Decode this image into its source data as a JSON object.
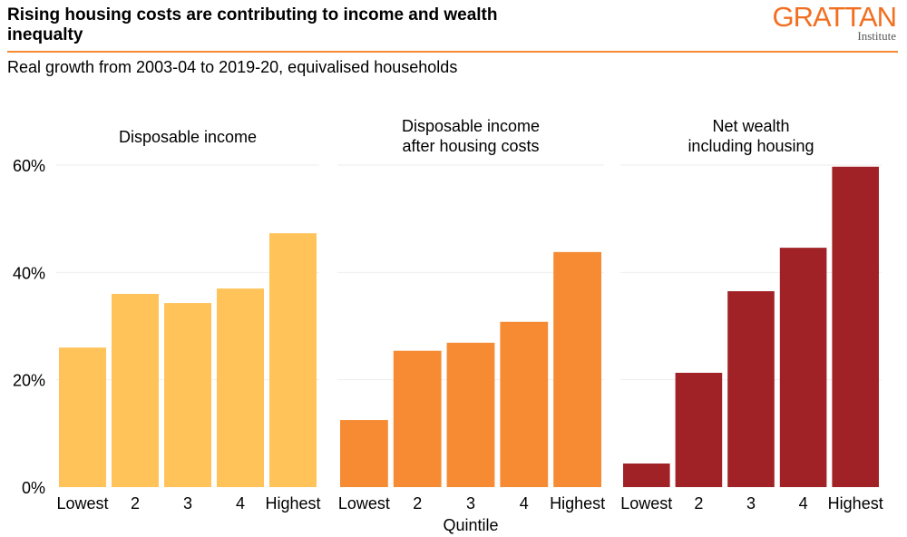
{
  "header": {
    "title": "Rising housing costs are contributing to income and wealth inequalty",
    "subtitle": "Real growth from 2003-04 to 2019-20, equivalised households",
    "logo_text": "GRATTAN",
    "logo_sub": "Institute"
  },
  "colors": {
    "accent": "#F68B33",
    "logo": "#F26F21"
  },
  "chart_data": {
    "type": "bar",
    "xlabel": "Quintile",
    "ylabel": "",
    "ylim": [
      0,
      60
    ],
    "yticks": [
      0,
      20,
      40,
      60
    ],
    "ytick_labels": [
      "0%",
      "20%",
      "40%",
      "60%"
    ],
    "grid": true,
    "categories": [
      "Lowest",
      "2",
      "3",
      "4",
      "Highest"
    ],
    "panels": [
      {
        "title": [
          "Disposable income"
        ],
        "color": "#FFC35A",
        "values": [
          26.0,
          36.0,
          34.3,
          37.0,
          47.3
        ]
      },
      {
        "title": [
          "Disposable income",
          "after housing costs"
        ],
        "color": "#F68B33",
        "values": [
          12.5,
          25.4,
          26.9,
          30.8,
          43.8
        ]
      },
      {
        "title": [
          "Net wealth",
          "including housing"
        ],
        "color": "#A02226",
        "values": [
          4.4,
          21.3,
          36.5,
          44.6,
          59.7
        ]
      }
    ]
  }
}
